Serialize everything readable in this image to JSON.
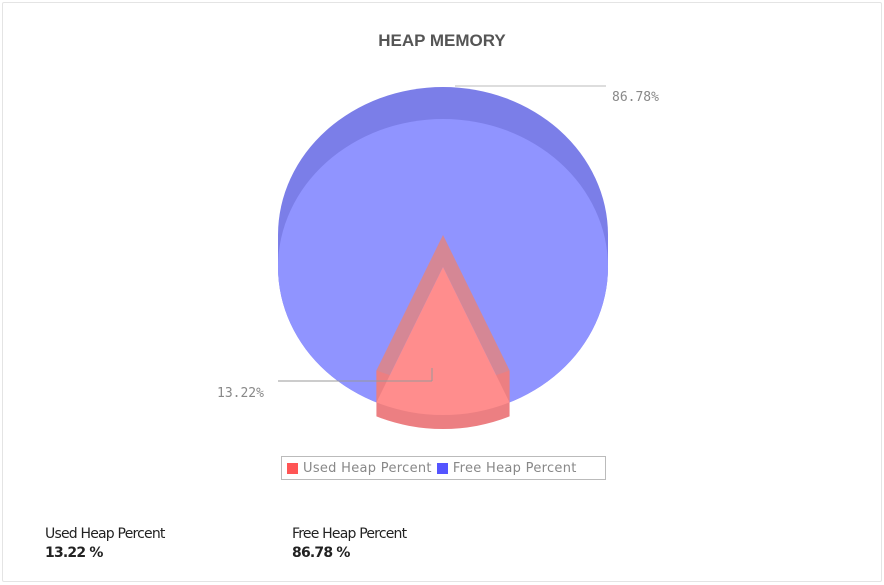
{
  "chart_data": {
    "type": "pie",
    "title": "HEAP MEMORY",
    "categories": [
      "Used Heap Percent",
      "Free Heap Percent"
    ],
    "values": [
      13.22,
      86.78
    ],
    "data_labels": [
      "13.22%",
      "86.78%"
    ],
    "colors": [
      "#ff6666",
      "#6666ff"
    ],
    "style": "3d",
    "legend_placement": "bottom"
  },
  "stats": [
    {
      "name": "Used Heap Percent",
      "value": "13.22 %"
    },
    {
      "name": "Free Heap Percent",
      "value": "86.78 %"
    }
  ]
}
